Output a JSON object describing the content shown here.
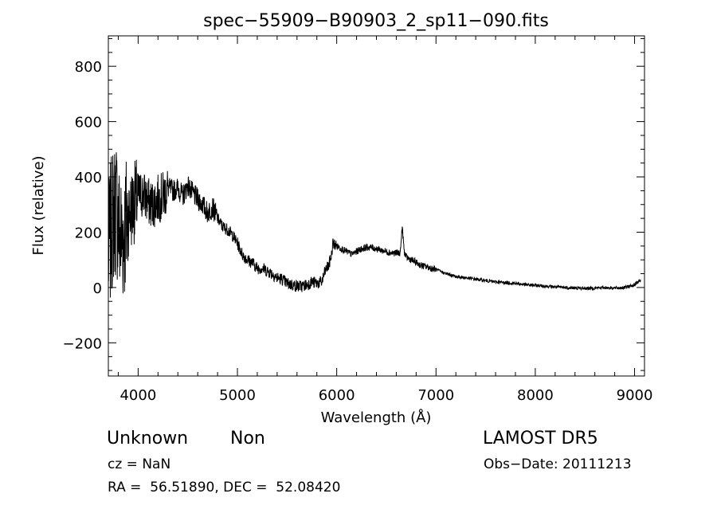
{
  "chart_data": {
    "type": "line",
    "title": "spec−55909−B90903_2_sp11−090.fits",
    "xlabel": "Wavelength (Å)",
    "ylabel": "Flux (relative)",
    "xlim": [
      3700,
      9100
    ],
    "ylim": [
      -320,
      910
    ],
    "x_ticks": [
      4000,
      5000,
      6000,
      7000,
      8000,
      9000
    ],
    "y_ticks": [
      -200,
      0,
      200,
      400,
      600,
      800
    ],
    "grid": false,
    "series": [
      {
        "x": [
          3700,
          3740,
          3780,
          3820,
          3860,
          3900,
          3950,
          4000,
          4050,
          4100,
          4150,
          4200,
          4250,
          4300,
          4350,
          4400,
          4450,
          4500,
          4550,
          4600,
          4650,
          4700,
          4750,
          4800,
          4850,
          4900,
          4950,
          5000,
          5050,
          5100,
          5150,
          5200,
          5250,
          5300,
          5350,
          5400,
          5450,
          5500,
          5550,
          5600,
          5650,
          5700,
          5750,
          5800,
          5850,
          5880,
          5900,
          5920,
          5950,
          5960,
          6000,
          6050,
          6100,
          6150,
          6200,
          6250,
          6300,
          6350,
          6400,
          6450,
          6500,
          6550,
          6600,
          6640,
          6660,
          6680,
          6700,
          6750,
          6800,
          6850,
          6900,
          6950,
          7000,
          7100,
          7200,
          7300,
          7400,
          7500,
          7600,
          7700,
          7800,
          7900,
          8000,
          8100,
          8200,
          8300,
          8400,
          8500,
          8600,
          8700,
          8800,
          8900,
          8950,
          9000,
          9050
        ],
        "y": [
          120,
          250,
          300,
          180,
          200,
          260,
          300,
          330,
          340,
          310,
          300,
          320,
          330,
          360,
          350,
          360,
          330,
          370,
          340,
          320,
          300,
          270,
          290,
          250,
          220,
          210,
          190,
          160,
          120,
          100,
          90,
          70,
          70,
          60,
          50,
          35,
          30,
          15,
          10,
          5,
          5,
          10,
          20,
          15,
          20,
          55,
          70,
          80,
          120,
          160,
          150,
          140,
          130,
          120,
          130,
          140,
          145,
          145,
          140,
          135,
          130,
          125,
          125,
          125,
          220,
          130,
          110,
          100,
          90,
          80,
          75,
          70,
          65,
          50,
          40,
          35,
          30,
          25,
          20,
          18,
          15,
          10,
          8,
          5,
          2,
          0,
          -2,
          -3,
          -2,
          0,
          -2,
          0,
          5,
          10,
          25
        ]
      }
    ]
  },
  "info": {
    "class": "Unknown",
    "subclass": "Non",
    "survey": "LAMOST DR5",
    "cz": "cz = NaN",
    "obs_date": "Obs−Date: 20111213",
    "coords": "RA =  56.51890, DEC =  52.08420"
  }
}
